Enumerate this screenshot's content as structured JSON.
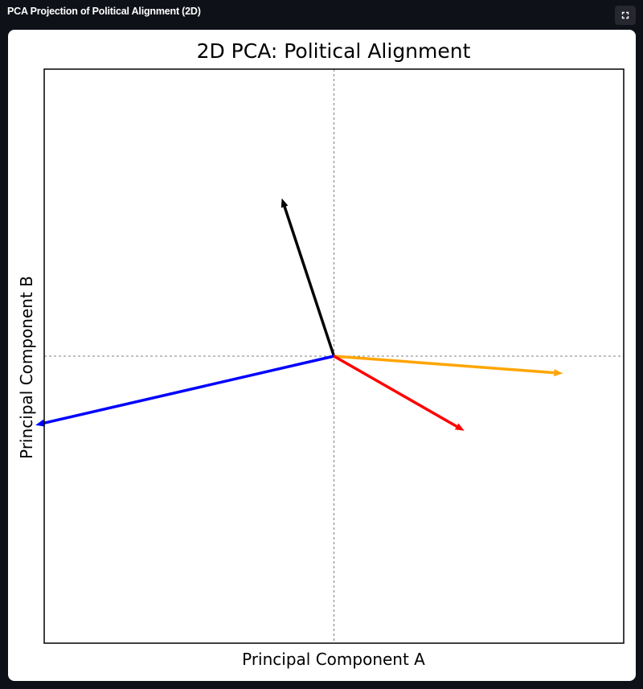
{
  "window": {
    "title": "PCA Projection of Political Alignment (2D)",
    "fullscreen_icon": "expand-icon"
  },
  "chart_data": {
    "type": "vector",
    "title": "2D PCA: Political Alignment",
    "xlabel": "Principal Component A",
    "ylabel": "Principal Component B",
    "xlim": [
      -1,
      1
    ],
    "ylim": [
      -1,
      1
    ],
    "grid": false,
    "ticks": false,
    "reference_lines": {
      "x": 0,
      "y": 0,
      "style": "dashed",
      "color": "#808080"
    },
    "origin": [
      0,
      0
    ],
    "series": [
      {
        "color": "#000000",
        "x": -0.18,
        "y": 0.55
      },
      {
        "color": "#0000ff",
        "x": -1.03,
        "y": -0.24
      },
      {
        "color": "#ffa500",
        "x": 0.79,
        "y": -0.06
      },
      {
        "color": "#ff0000",
        "x": 0.45,
        "y": -0.26
      }
    ]
  }
}
